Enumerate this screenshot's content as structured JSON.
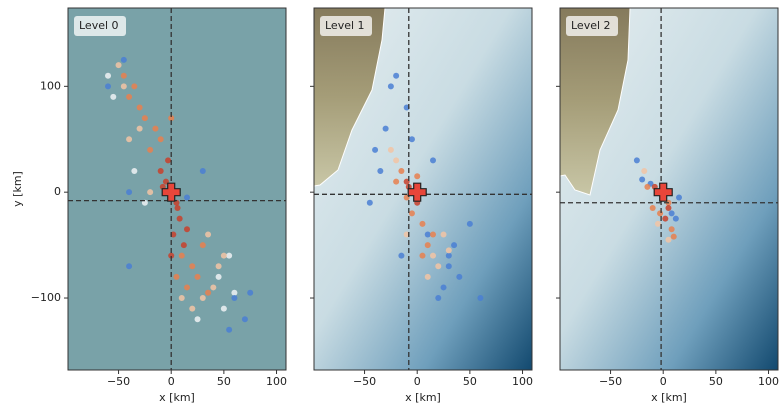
{
  "chart_data": [
    {
      "type": "scatter",
      "label": "Level 0",
      "xlabel": "x [km]",
      "ylabel": "y [km]",
      "xlim": [
        -98,
        109
      ],
      "ylim": [
        -168,
        174
      ],
      "xticks": [
        {
          "value": -50,
          "label": "−50"
        },
        0,
        50,
        100
      ],
      "yticks": [
        {
          "value": -100,
          "label": "−100"
        },
        0,
        100
      ],
      "reference": {
        "x": 0,
        "y": -8
      },
      "marker": {
        "x": 0,
        "y": 0
      },
      "series": [
        {
          "color": "#eef2f4",
          "x": [
            -60,
            -55,
            45,
            55,
            -35,
            25,
            60,
            -25,
            50
          ],
          "y": [
            110,
            90,
            -80,
            -60,
            20,
            -120,
            -95,
            -10,
            -110
          ]
        },
        {
          "color": "#4a7fd4",
          "x": [
            -45,
            -60,
            70,
            55,
            -40,
            60,
            75,
            30,
            -40,
            15
          ],
          "y": [
            125,
            100,
            -120,
            -130,
            -70,
            -100,
            -95,
            20,
            0,
            -5
          ]
        },
        {
          "color": "#f2c4a4",
          "x": [
            -50,
            -45,
            -30,
            30,
            40,
            45,
            -40,
            20,
            50,
            -20,
            35,
            10
          ],
          "y": [
            120,
            100,
            60,
            -100,
            -90,
            -70,
            50,
            -110,
            -60,
            0,
            -40,
            -100
          ]
        },
        {
          "color": "#e8804f",
          "x": [
            -20,
            -15,
            -25,
            10,
            20,
            25,
            -30,
            -35,
            15,
            30,
            -10,
            5,
            -40,
            35,
            0,
            -45
          ],
          "y": [
            40,
            60,
            70,
            -60,
            -70,
            -80,
            80,
            100,
            -90,
            -50,
            50,
            -80,
            90,
            -95,
            70,
            110
          ]
        },
        {
          "color": "#c8412c",
          "x": [
            -5,
            0,
            5,
            -10,
            8,
            2,
            -3,
            12,
            6,
            -8,
            15,
            0
          ],
          "y": [
            10,
            0,
            -10,
            20,
            -25,
            -40,
            30,
            -50,
            -15,
            5,
            -35,
            -60
          ]
        }
      ]
    },
    {
      "type": "scatter",
      "label": "Level 1",
      "xlabel": "x [km]",
      "xlim": [
        -98,
        109
      ],
      "ylim": [
        -168,
        174
      ],
      "xticks": [
        {
          "value": -50,
          "label": "−50"
        },
        0,
        50,
        100
      ],
      "reference": {
        "x": -8,
        "y": -2
      },
      "marker": {
        "x": 0,
        "y": 0
      },
      "series": [
        {
          "color": "#4a7fd4",
          "x": [
            -30,
            -25,
            -40,
            -20,
            -35,
            25,
            30,
            20,
            35,
            40,
            -45,
            10,
            -10,
            50,
            60,
            30,
            -15,
            -5,
            15
          ],
          "y": [
            60,
            100,
            40,
            110,
            20,
            -90,
            -70,
            -100,
            -50,
            -80,
            -10,
            -40,
            80,
            -30,
            -100,
            -60,
            -60,
            50,
            30
          ]
        },
        {
          "color": "#f2c4a4",
          "x": [
            -20,
            -25,
            15,
            20,
            25,
            10,
            -10,
            30
          ],
          "y": [
            30,
            40,
            -60,
            -70,
            -40,
            -80,
            -40,
            -55
          ]
        },
        {
          "color": "#e8804f",
          "x": [
            -15,
            -5,
            5,
            10,
            -10,
            0,
            15,
            5,
            -20
          ],
          "y": [
            20,
            -20,
            -30,
            -50,
            -5,
            15,
            -40,
            -60,
            10
          ]
        },
        {
          "color": "#c8412c",
          "x": [
            -10,
            -5,
            0,
            -8
          ],
          "y": [
            10,
            0,
            -10,
            5
          ]
        }
      ]
    },
    {
      "type": "scatter",
      "label": "Level 2",
      "xlabel": "x [km]",
      "xlim": [
        -98,
        109
      ],
      "ylim": [
        -168,
        174
      ],
      "xticks": [
        {
          "value": -50,
          "label": "−50"
        },
        0,
        50,
        100
      ],
      "reference": {
        "x": -2,
        "y": -10
      },
      "marker": {
        "x": 0,
        "y": 0
      },
      "series": [
        {
          "color": "#4a7fd4",
          "x": [
            -25,
            -20,
            -12,
            8,
            12,
            15
          ],
          "y": [
            30,
            12,
            8,
            -20,
            -25,
            -5
          ]
        },
        {
          "color": "#f2c4a4",
          "x": [
            -18,
            5,
            -5
          ],
          "y": [
            20,
            -45,
            -30
          ]
        },
        {
          "color": "#e8804f",
          "x": [
            -15,
            -3,
            5,
            8,
            10,
            -10
          ],
          "y": [
            5,
            -20,
            -10,
            -35,
            -42,
            -15
          ]
        },
        {
          "color": "#c8412c",
          "x": [
            -5,
            0,
            2,
            -8,
            5
          ],
          "y": [
            0,
            -5,
            -25,
            5,
            -15
          ]
        }
      ]
    }
  ]
}
